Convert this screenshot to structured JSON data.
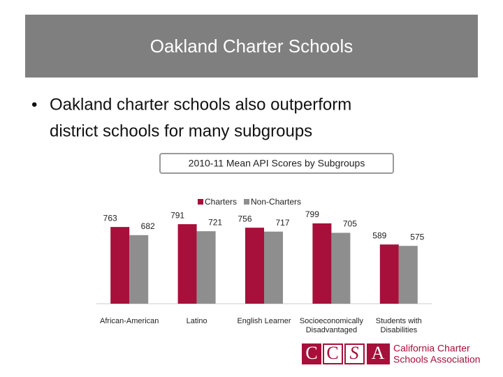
{
  "header": {
    "title": "Oakland Charter Schools"
  },
  "bullet": {
    "marker": "•",
    "lines": [
      "Oakland charter schools also outperform",
      "district schools for many subgroups"
    ]
  },
  "chart_data": {
    "type": "bar",
    "title": "2010-11 Mean API Scores by Subgroups",
    "categories": [
      [
        "African-American"
      ],
      [
        "Latino"
      ],
      [
        "English Learner"
      ],
      [
        "Socioeconomically",
        "Disadvantaged"
      ],
      [
        "Students with",
        "Disabilities"
      ]
    ],
    "series": [
      {
        "name": "Charters",
        "color": "#a6103a",
        "values": [
          763,
          791,
          756,
          799,
          589
        ]
      },
      {
        "name": "Non-Charters",
        "color": "#8e8e8e",
        "values": [
          682,
          721,
          717,
          705,
          575
        ]
      }
    ],
    "ylim": [
      0,
      1000
    ],
    "legend": "top",
    "data_labels": true
  },
  "logo": {
    "letters": [
      "C",
      "C",
      "S",
      "A"
    ],
    "lines": [
      "California Charter",
      "Schools Association"
    ]
  }
}
